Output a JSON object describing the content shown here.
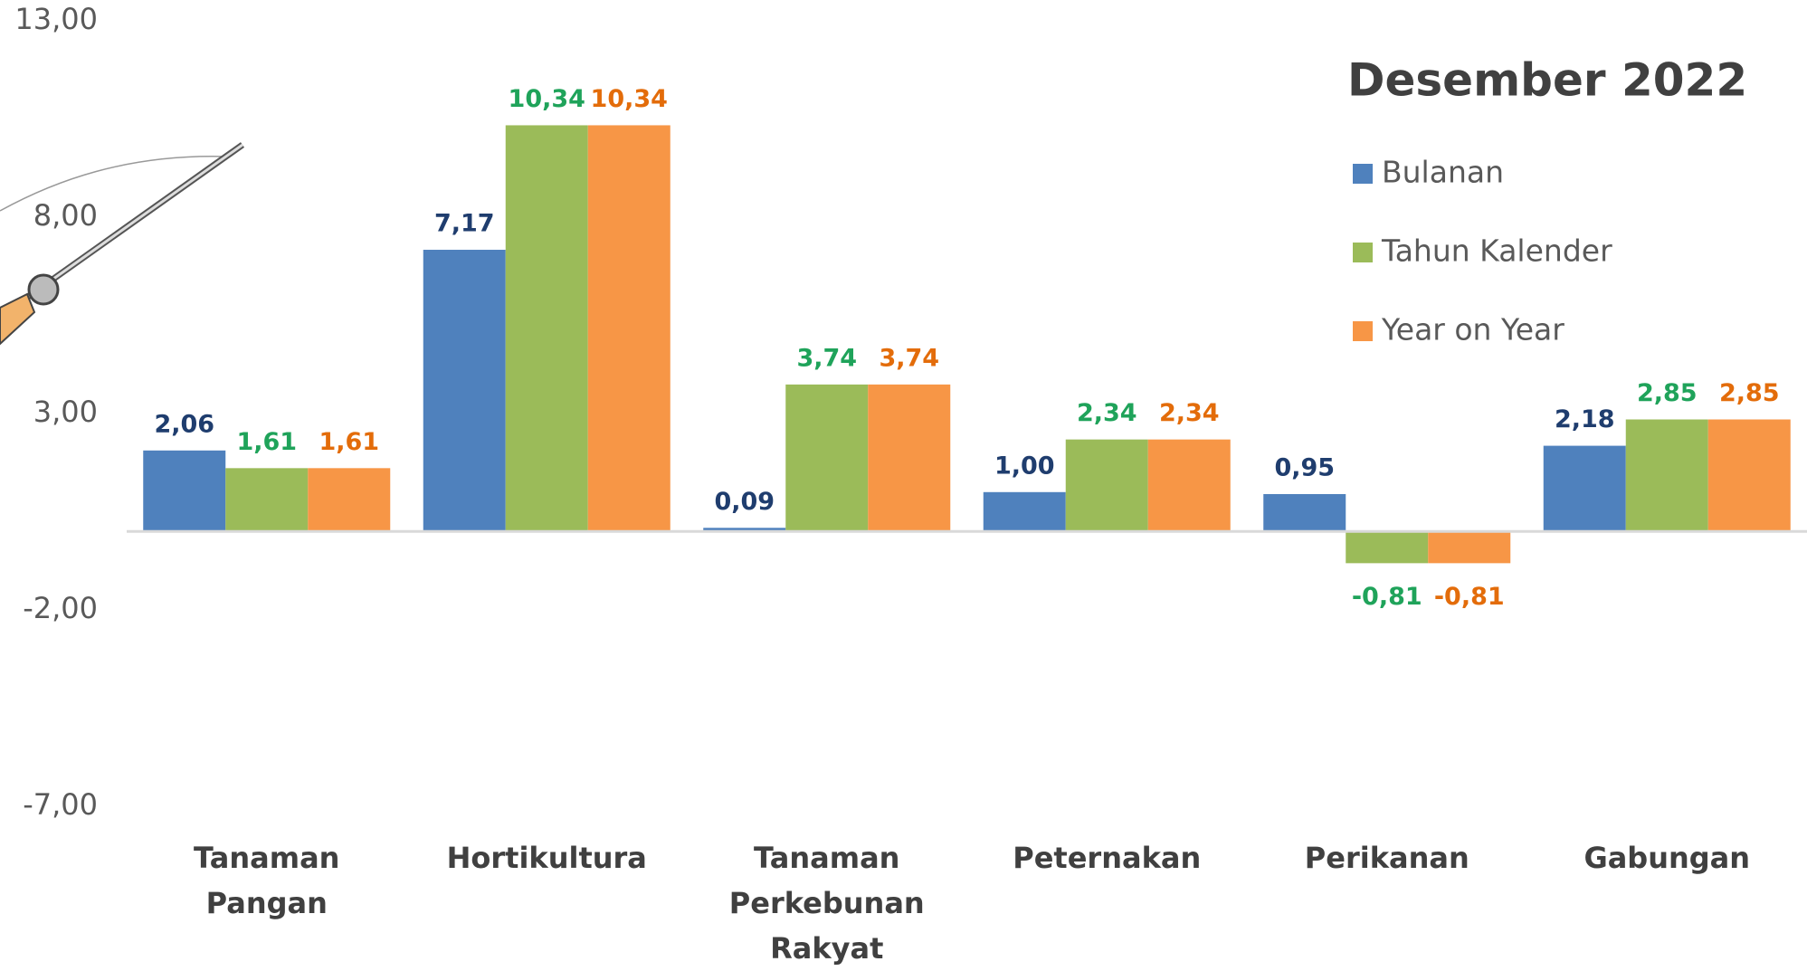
{
  "chart_data": {
    "type": "bar",
    "title": "Desember 2022",
    "categories": [
      "Tanaman Pangan",
      "Hortikultura",
      "Tanaman Perkebunan Rakyat",
      "Peternakan",
      "Perikanan",
      "Gabungan"
    ],
    "series": [
      {
        "name": "Bulanan",
        "color": "#4f81bd",
        "label_color": "#1f3d6e",
        "values": [
          2.06,
          7.17,
          0.09,
          1.0,
          0.95,
          2.18
        ],
        "value_labels": [
          "2,06",
          "7,17",
          "0,09",
          "1,00",
          "0,95",
          "2,18"
        ]
      },
      {
        "name": "Tahun Kalender",
        "color": "#9bbb59",
        "label_color": "#1fa35a",
        "values": [
          1.61,
          10.34,
          3.74,
          2.34,
          -0.81,
          2.85
        ],
        "value_labels": [
          "1,61",
          "10,34",
          "3,74",
          "2,34",
          "-0,81",
          "2,85"
        ]
      },
      {
        "name": "Year on Year",
        "color": "#f79646",
        "label_color": "#e36c0a",
        "values": [
          1.61,
          10.34,
          3.74,
          2.34,
          -0.81,
          2.85
        ],
        "value_labels": [
          "1,61",
          "10,34",
          "3,74",
          "2,34",
          "-0,81",
          "2,85"
        ]
      }
    ],
    "ylim": [
      -7,
      13
    ],
    "yticks": [
      {
        "value": -7,
        "label": "-7,00"
      },
      {
        "value": -2,
        "label": "-2,00"
      },
      {
        "value": 3,
        "label": "3,00"
      },
      {
        "value": 8,
        "label": "8,00"
      },
      {
        "value": 13,
        "label": "13,00"
      }
    ],
    "grid": false
  }
}
